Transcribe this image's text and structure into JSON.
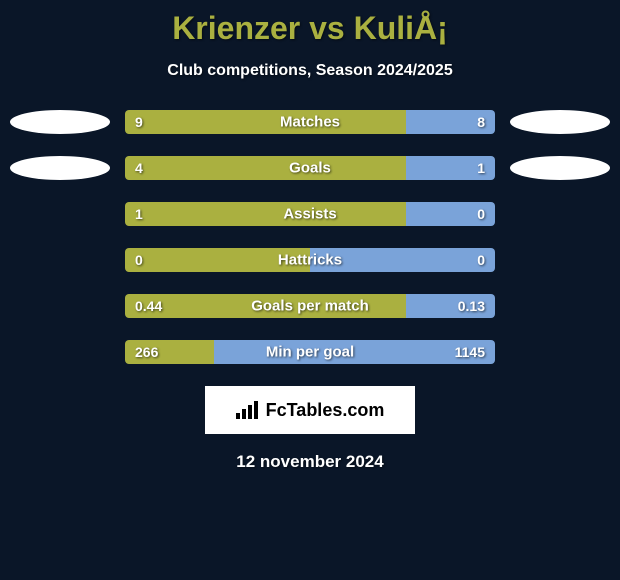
{
  "title": "Krienzer vs KuliÅ¡",
  "subtitle": "Club competitions, Season 2024/2025",
  "date": "12 november 2024",
  "logo_text": "FcTables.com",
  "colors": {
    "background": "#0a1628",
    "title": "#aab040",
    "text": "#ffffff",
    "left_bar": "#aab040",
    "right_bar": "#7aa3d9",
    "ellipse": "#ffffff",
    "logo_bg": "#ffffff"
  },
  "rows": [
    {
      "label": "Matches",
      "left_value": "9",
      "right_value": "8",
      "left_pct": 76,
      "right_pct": 24,
      "show_left_ellipse": true,
      "show_right_ellipse": true
    },
    {
      "label": "Goals",
      "left_value": "4",
      "right_value": "1",
      "left_pct": 76,
      "right_pct": 24,
      "show_left_ellipse": true,
      "show_right_ellipse": true
    },
    {
      "label": "Assists",
      "left_value": "1",
      "right_value": "0",
      "left_pct": 76,
      "right_pct": 24,
      "show_left_ellipse": false,
      "show_right_ellipse": false
    },
    {
      "label": "Hattricks",
      "left_value": "0",
      "right_value": "0",
      "left_pct": 50,
      "right_pct": 50,
      "show_left_ellipse": false,
      "show_right_ellipse": false
    },
    {
      "label": "Goals per match",
      "left_value": "0.44",
      "right_value": "0.13",
      "left_pct": 76,
      "right_pct": 24,
      "show_left_ellipse": false,
      "show_right_ellipse": false
    },
    {
      "label": "Min per goal",
      "left_value": "266",
      "right_value": "1145",
      "left_pct": 24,
      "right_pct": 76,
      "show_left_ellipse": false,
      "show_right_ellipse": false
    }
  ]
}
